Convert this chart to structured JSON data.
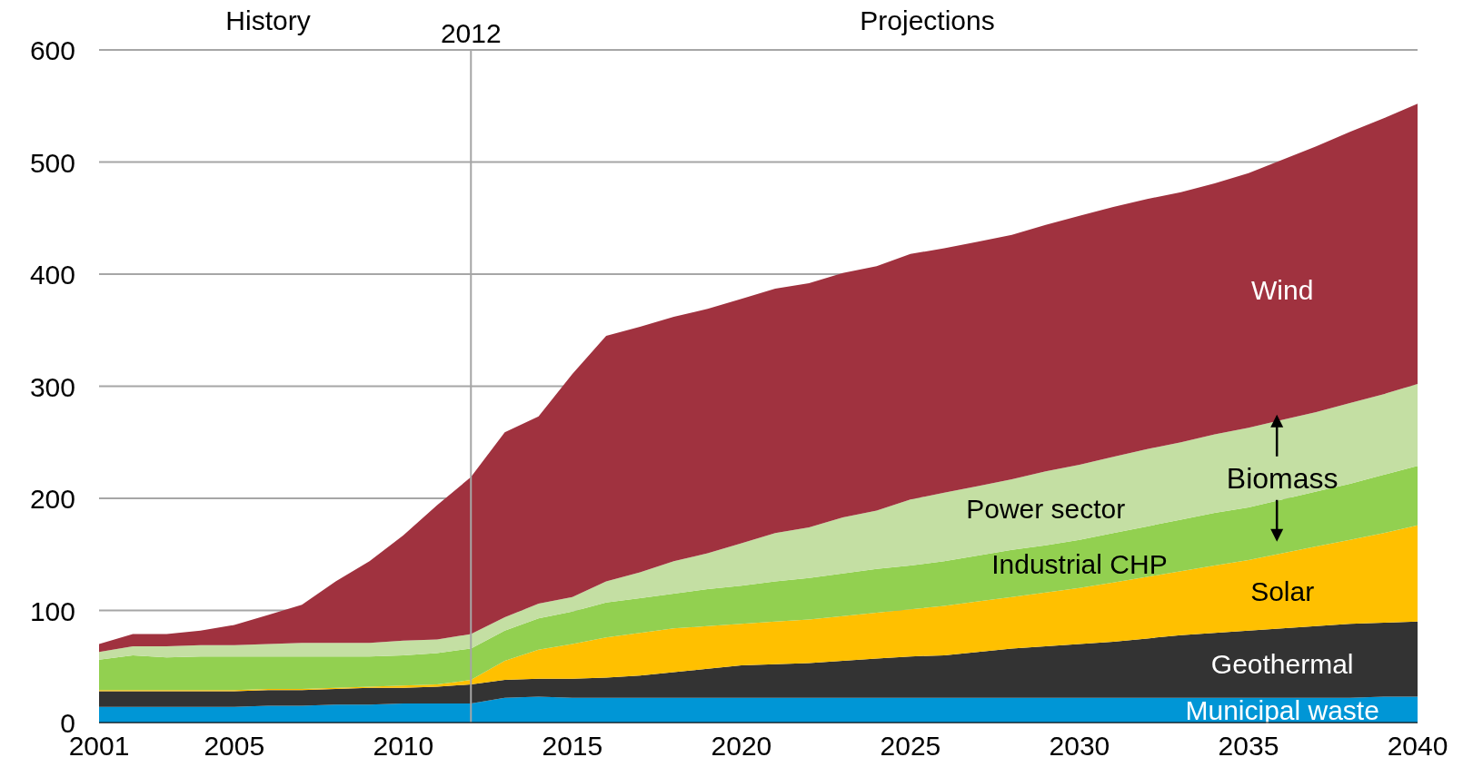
{
  "chart_data": {
    "type": "area",
    "stacked": true,
    "x": [
      2001,
      2002,
      2003,
      2004,
      2005,
      2006,
      2007,
      2008,
      2009,
      2010,
      2011,
      2012,
      2013,
      2014,
      2015,
      2016,
      2017,
      2018,
      2019,
      2020,
      2021,
      2022,
      2023,
      2024,
      2025,
      2026,
      2027,
      2028,
      2029,
      2030,
      2031,
      2032,
      2033,
      2034,
      2035,
      2036,
      2037,
      2038,
      2039,
      2040
    ],
    "series": [
      {
        "name": "Municipal waste",
        "color": "#0096d6",
        "values": [
          14,
          14,
          14,
          14,
          14,
          15,
          15,
          16,
          16,
          17,
          17,
          17,
          22,
          23,
          22,
          22,
          22,
          22,
          22,
          22,
          22,
          22,
          22,
          22,
          22,
          22,
          22,
          22,
          22,
          22,
          22,
          22,
          22,
          22,
          22,
          22,
          22,
          22,
          23,
          23
        ]
      },
      {
        "name": "Geothermal",
        "color": "#333333",
        "values": [
          14,
          14,
          14,
          14,
          14,
          14,
          14,
          14,
          15,
          14,
          15,
          17,
          16,
          16,
          17,
          18,
          20,
          23,
          26,
          29,
          30,
          31,
          33,
          35,
          37,
          38,
          41,
          44,
          46,
          48,
          50,
          53,
          56,
          58,
          60,
          62,
          64,
          66,
          66,
          67
        ]
      },
      {
        "name": "Solar",
        "color": "#ffc000",
        "values": [
          1,
          1,
          1,
          1,
          1,
          1,
          1,
          1,
          1,
          2,
          2,
          4,
          17,
          26,
          31,
          36,
          38,
          39,
          38,
          37,
          38,
          39,
          40,
          41,
          42,
          44,
          45,
          46,
          48,
          50,
          53,
          55,
          57,
          60,
          63,
          67,
          71,
          75,
          80,
          86
        ]
      },
      {
        "name": "Industrial CHP",
        "color": "#92d050",
        "values": [
          27,
          31,
          29,
          30,
          30,
          29,
          29,
          28,
          27,
          27,
          28,
          28,
          27,
          28,
          29,
          31,
          31,
          31,
          33,
          34,
          36,
          37,
          38,
          39,
          39,
          40,
          41,
          42,
          42,
          43,
          44,
          45,
          46,
          47,
          47,
          48,
          49,
          50,
          52,
          53
        ]
      },
      {
        "name": "Power sector",
        "color": "#c4dfa3",
        "values": [
          7,
          8,
          10,
          10,
          10,
          11,
          12,
          12,
          12,
          13,
          12,
          13,
          12,
          13,
          13,
          19,
          23,
          29,
          32,
          38,
          43,
          45,
          50,
          52,
          59,
          61,
          62,
          63,
          66,
          67,
          68,
          69,
          69,
          70,
          71,
          71,
          71,
          72,
          72,
          73
        ]
      },
      {
        "name": "Wind",
        "color": "#a0323f",
        "values": [
          7,
          11,
          11,
          13,
          18,
          26,
          34,
          55,
          73,
          94,
          120,
          140,
          165,
          167,
          199,
          219,
          219,
          218,
          218,
          218,
          218,
          218,
          218,
          218,
          219,
          218,
          218,
          218,
          220,
          222,
          223,
          223,
          223,
          224,
          227,
          232,
          237,
          242,
          246,
          250
        ]
      }
    ],
    "xlim": [
      2001,
      2040
    ],
    "xticks": [
      2001,
      2005,
      2010,
      2015,
      2020,
      2025,
      2030,
      2035,
      2040
    ],
    "ylim": [
      0,
      600
    ],
    "yticks": [
      0,
      100,
      200,
      300,
      400,
      500,
      600
    ],
    "grid": "y",
    "ref_lines": [
      {
        "axis": "x",
        "value": 2012,
        "label": "2012",
        "color": "#a6a6a6"
      }
    ],
    "annotations": [
      "History",
      "Projections",
      "Biomass"
    ]
  }
}
